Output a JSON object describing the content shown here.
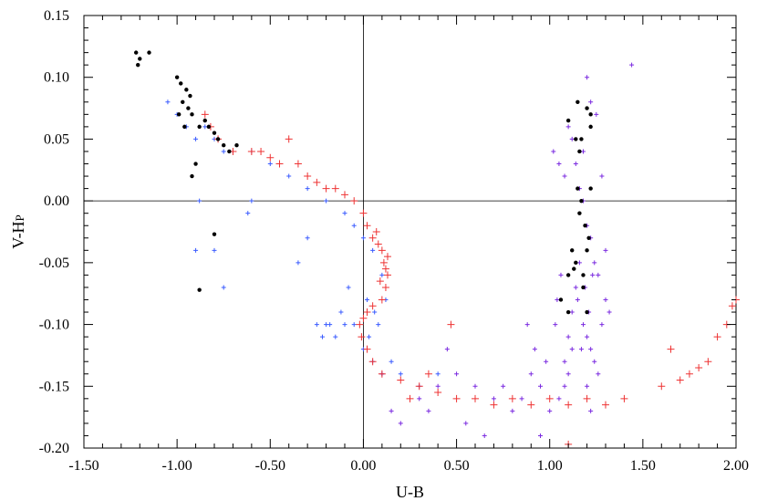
{
  "chart_data": {
    "type": "scatter",
    "title": "",
    "xlabel": "U-B",
    "ylabel": "V-H",
    "ylabel_subscript": "P",
    "xlim": [
      -1.5,
      2.0
    ],
    "ylim": [
      -0.2,
      0.15
    ],
    "x_ticks": [
      -1.5,
      -1.0,
      -0.5,
      0.0,
      0.5,
      1.0,
      1.5,
      2.0
    ],
    "x_tick_labels": [
      "-1.50",
      "-1.00",
      "-0.50",
      "0.00",
      "0.50",
      "1.00",
      "1.50",
      "2.00"
    ],
    "y_ticks": [
      -0.2,
      -0.15,
      -0.1,
      -0.05,
      0.0,
      0.05,
      0.1,
      0.15
    ],
    "y_tick_labels": [
      "-0.20",
      "-0.15",
      "-0.10",
      "-0.05",
      "0.00",
      "0.05",
      "0.10",
      "0.15"
    ],
    "reference_lines": {
      "x": 0.0,
      "y": 0.0
    },
    "grid": false,
    "legend": "none",
    "series": [
      {
        "marker": "small plus",
        "color": "#7b2be0",
        "points": [
          [
            1.02,
            0.04
          ],
          [
            1.05,
            0.03
          ],
          [
            1.08,
            0.02
          ],
          [
            1.1,
            0.06
          ],
          [
            1.12,
            0.05
          ],
          [
            1.14,
            0.03
          ],
          [
            1.16,
            0.01
          ],
          [
            1.18,
            0.0
          ],
          [
            1.2,
            -0.02
          ],
          [
            1.22,
            -0.03
          ],
          [
            1.24,
            -0.05
          ],
          [
            1.26,
            -0.06
          ],
          [
            1.15,
            -0.08
          ],
          [
            1.18,
            -0.1
          ],
          [
            1.2,
            -0.11
          ],
          [
            1.22,
            -0.12
          ],
          [
            1.24,
            -0.13
          ],
          [
            1.26,
            -0.14
          ],
          [
            1.28,
            -0.1
          ],
          [
            1.3,
            -0.08
          ],
          [
            1.12,
            -0.12
          ],
          [
            1.1,
            -0.14
          ],
          [
            1.08,
            -0.15
          ],
          [
            1.05,
            -0.16
          ],
          [
            1.0,
            -0.17
          ],
          [
            0.95,
            -0.15
          ],
          [
            0.9,
            -0.14
          ],
          [
            0.85,
            -0.16
          ],
          [
            0.8,
            -0.17
          ],
          [
            0.75,
            -0.15
          ],
          [
            0.7,
            -0.16
          ],
          [
            0.6,
            -0.15
          ],
          [
            0.5,
            -0.14
          ],
          [
            0.4,
            -0.15
          ],
          [
            0.3,
            -0.16
          ],
          [
            0.2,
            -0.18
          ],
          [
            0.15,
            -0.17
          ],
          [
            0.1,
            -0.14
          ],
          [
            1.2,
            0.1
          ],
          [
            1.22,
            0.08
          ],
          [
            1.25,
            0.07
          ],
          [
            1.18,
            0.04
          ],
          [
            1.28,
            0.02
          ],
          [
            1.3,
            -0.04
          ],
          [
            1.32,
            -0.09
          ],
          [
            1.16,
            -0.05
          ],
          [
            1.14,
            -0.07
          ],
          [
            1.12,
            -0.09
          ],
          [
            1.1,
            -0.11
          ],
          [
            1.08,
            -0.13
          ],
          [
            1.06,
            -0.06
          ],
          [
            1.04,
            -0.08
          ],
          [
            1.03,
            -0.1
          ],
          [
            0.98,
            -0.13
          ],
          [
            0.92,
            -0.12
          ],
          [
            0.88,
            -0.1
          ],
          [
            1.2,
            -0.15
          ],
          [
            1.22,
            -0.17
          ],
          [
            1.19,
            -0.07
          ],
          [
            1.21,
            -0.09
          ],
          [
            1.23,
            -0.06
          ],
          [
            1.17,
            -0.12
          ],
          [
            1.44,
            0.11
          ],
          [
            0.95,
            -0.19
          ],
          [
            0.65,
            -0.19
          ],
          [
            0.35,
            -0.17
          ],
          [
            0.55,
            -0.18
          ],
          [
            0.45,
            -0.12
          ]
        ]
      },
      {
        "marker": "small plus",
        "color": "#3b5cff",
        "points": [
          [
            -1.05,
            0.08
          ],
          [
            -1.0,
            0.07
          ],
          [
            -0.95,
            0.06
          ],
          [
            -0.9,
            0.05
          ],
          [
            -0.85,
            0.06
          ],
          [
            -0.8,
            0.05
          ],
          [
            -0.75,
            0.04
          ],
          [
            -0.7,
            0.04
          ],
          [
            -0.6,
            0.04
          ],
          [
            -0.5,
            0.03
          ],
          [
            -0.4,
            0.02
          ],
          [
            -0.3,
            0.01
          ],
          [
            -0.2,
            0.0
          ],
          [
            -0.1,
            -0.01
          ],
          [
            -0.05,
            -0.02
          ],
          [
            0.0,
            -0.03
          ],
          [
            0.05,
            -0.04
          ],
          [
            0.1,
            -0.06
          ],
          [
            0.12,
            -0.08
          ],
          [
            0.08,
            -0.1
          ],
          [
            0.03,
            -0.11
          ],
          [
            0.0,
            -0.12
          ],
          [
            -0.05,
            -0.1
          ],
          [
            -0.1,
            -0.1
          ],
          [
            -0.15,
            -0.11
          ],
          [
            -0.2,
            -0.1
          ],
          [
            -0.22,
            -0.11
          ],
          [
            -0.25,
            -0.1
          ],
          [
            -0.18,
            -0.1
          ],
          [
            0.05,
            -0.13
          ],
          [
            0.1,
            -0.14
          ],
          [
            0.15,
            -0.13
          ],
          [
            0.2,
            -0.14
          ],
          [
            0.3,
            -0.15
          ],
          [
            0.4,
            -0.14
          ],
          [
            -0.9,
            -0.04
          ],
          [
            -0.8,
            -0.04
          ],
          [
            -0.88,
            -0.0
          ],
          [
            -0.75,
            -0.07
          ],
          [
            -0.6,
            0.0
          ],
          [
            -0.62,
            -0.01
          ],
          [
            -0.35,
            -0.05
          ],
          [
            -0.3,
            -0.03
          ],
          [
            -0.08,
            -0.07
          ],
          [
            -0.12,
            -0.09
          ],
          [
            0.02,
            -0.08
          ],
          [
            0.06,
            -0.09
          ]
        ]
      },
      {
        "marker": "plus",
        "color": "#ee3333",
        "points": [
          [
            -0.85,
            0.07
          ],
          [
            -0.82,
            0.06
          ],
          [
            -0.78,
            0.05
          ],
          [
            -0.7,
            0.04
          ],
          [
            -0.6,
            0.04
          ],
          [
            -0.55,
            0.04
          ],
          [
            -0.5,
            0.035
          ],
          [
            -0.45,
            0.03
          ],
          [
            -0.4,
            0.05
          ],
          [
            -0.35,
            0.03
          ],
          [
            -0.3,
            0.02
          ],
          [
            -0.25,
            0.015
          ],
          [
            -0.2,
            0.01
          ],
          [
            -0.15,
            0.01
          ],
          [
            -0.1,
            0.005
          ],
          [
            -0.05,
            0.0
          ],
          [
            0.0,
            -0.01
          ],
          [
            0.02,
            -0.02
          ],
          [
            0.05,
            -0.03
          ],
          [
            0.08,
            -0.035
          ],
          [
            0.1,
            -0.04
          ],
          [
            0.11,
            -0.05
          ],
          [
            0.12,
            -0.055
          ],
          [
            0.13,
            -0.06
          ],
          [
            0.12,
            -0.07
          ],
          [
            0.1,
            -0.08
          ],
          [
            0.05,
            -0.085
          ],
          [
            0.02,
            -0.09
          ],
          [
            0.0,
            -0.095
          ],
          [
            -0.02,
            -0.1
          ],
          [
            -0.01,
            -0.11
          ],
          [
            0.02,
            -0.12
          ],
          [
            0.05,
            -0.13
          ],
          [
            0.1,
            -0.14
          ],
          [
            0.2,
            -0.145
          ],
          [
            0.3,
            -0.15
          ],
          [
            0.4,
            -0.155
          ],
          [
            0.5,
            -0.16
          ],
          [
            0.6,
            -0.16
          ],
          [
            0.7,
            -0.165
          ],
          [
            0.8,
            -0.16
          ],
          [
            0.9,
            -0.165
          ],
          [
            1.0,
            -0.16
          ],
          [
            1.1,
            -0.165
          ],
          [
            1.2,
            -0.16
          ],
          [
            1.3,
            -0.165
          ],
          [
            1.4,
            -0.16
          ],
          [
            1.6,
            -0.15
          ],
          [
            1.65,
            -0.12
          ],
          [
            1.7,
            -0.145
          ],
          [
            1.75,
            -0.14
          ],
          [
            1.8,
            -0.135
          ],
          [
            1.85,
            -0.13
          ],
          [
            1.9,
            -0.11
          ],
          [
            1.95,
            -0.1
          ],
          [
            1.98,
            -0.085
          ],
          [
            2.0,
            -0.08
          ],
          [
            0.13,
            -0.045
          ],
          [
            0.09,
            -0.065
          ],
          [
            0.07,
            -0.025
          ],
          [
            0.47,
            -0.1
          ],
          [
            1.1,
            -0.197
          ],
          [
            0.25,
            -0.16
          ],
          [
            0.35,
            -0.14
          ]
        ]
      },
      {
        "marker": "filled circle",
        "color": "#000000",
        "points": [
          [
            -1.22,
            0.12
          ],
          [
            -1.2,
            0.115
          ],
          [
            -1.15,
            0.12
          ],
          [
            -1.21,
            0.11
          ],
          [
            -1.0,
            0.1
          ],
          [
            -0.98,
            0.095
          ],
          [
            -0.95,
            0.09
          ],
          [
            -0.93,
            0.085
          ],
          [
            -0.97,
            0.08
          ],
          [
            -0.94,
            0.075
          ],
          [
            -0.92,
            0.07
          ],
          [
            -0.99,
            0.07
          ],
          [
            -0.96,
            0.06
          ],
          [
            -0.88,
            0.06
          ],
          [
            -0.85,
            0.065
          ],
          [
            -0.83,
            0.06
          ],
          [
            -0.8,
            0.055
          ],
          [
            -0.78,
            0.05
          ],
          [
            -0.75,
            0.045
          ],
          [
            -0.72,
            0.04
          ],
          [
            -0.68,
            0.045
          ],
          [
            -0.9,
            0.03
          ],
          [
            -0.92,
            0.02
          ],
          [
            -0.8,
            -0.027
          ],
          [
            -0.88,
            -0.072
          ],
          [
            1.15,
            0.08
          ],
          [
            1.2,
            0.075
          ],
          [
            1.22,
            0.07
          ],
          [
            1.1,
            0.065
          ],
          [
            1.14,
            0.05
          ],
          [
            1.16,
            0.04
          ],
          [
            1.15,
            0.01
          ],
          [
            1.17,
            0.0
          ],
          [
            1.19,
            -0.02
          ],
          [
            1.12,
            -0.04
          ],
          [
            1.14,
            -0.05
          ],
          [
            1.18,
            -0.06
          ],
          [
            1.1,
            -0.06
          ],
          [
            1.2,
            -0.04
          ],
          [
            1.22,
            0.01
          ],
          [
            1.06,
            -0.08
          ],
          [
            1.1,
            -0.09
          ],
          [
            1.2,
            -0.09
          ],
          [
            1.18,
            -0.07
          ],
          [
            1.13,
            -0.055
          ],
          [
            1.21,
            -0.03
          ],
          [
            1.17,
            0.05
          ],
          [
            1.22,
            0.06
          ],
          [
            1.16,
            -0.01
          ]
        ]
      }
    ]
  }
}
